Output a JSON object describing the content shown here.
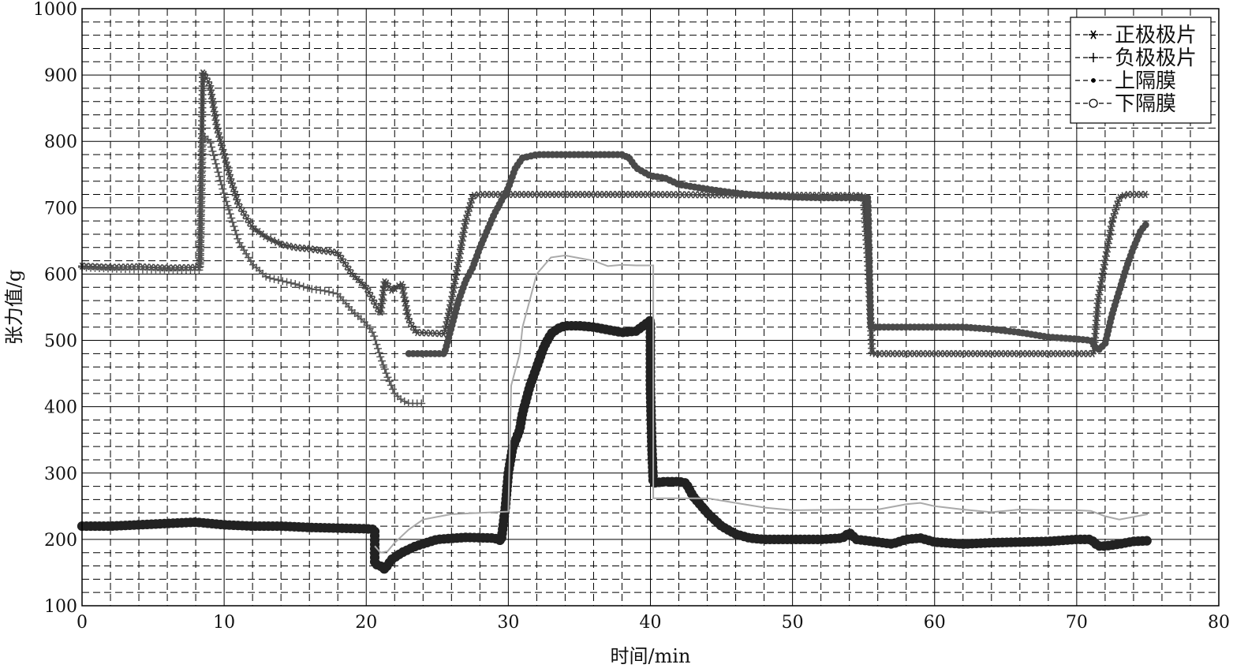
{
  "chart_data": {
    "type": "line",
    "xlabel": "时间/min",
    "ylabel": "张力值/g",
    "xlim": [
      0,
      80
    ],
    "ylim": [
      100,
      1000
    ],
    "x_ticks": [
      0,
      10,
      20,
      30,
      40,
      50,
      60,
      70,
      80
    ],
    "y_ticks": [
      100,
      200,
      300,
      400,
      500,
      600,
      700,
      800,
      900,
      1000
    ],
    "grid": true,
    "legend_position": "top-right",
    "series": [
      {
        "name": "正极极片",
        "marker": "star",
        "color": "#444444",
        "points": [
          [
            0,
            612
          ],
          [
            2,
            610
          ],
          [
            4,
            611
          ],
          [
            6,
            609
          ],
          [
            8,
            610
          ],
          [
            8.3,
            610
          ],
          [
            8.5,
            905
          ],
          [
            9,
            885
          ],
          [
            9.5,
            820
          ],
          [
            10,
            780
          ],
          [
            10.5,
            740
          ],
          [
            11,
            705
          ],
          [
            12,
            670
          ],
          [
            13,
            655
          ],
          [
            14,
            645
          ],
          [
            15,
            640
          ],
          [
            16,
            638
          ],
          [
            17,
            635
          ],
          [
            18,
            632
          ],
          [
            19,
            600
          ],
          [
            20,
            580
          ],
          [
            21,
            540
          ],
          [
            21.3,
            590
          ],
          [
            21.8,
            575
          ],
          [
            22.5,
            585
          ],
          [
            23,
            530
          ],
          [
            23.5,
            512
          ],
          [
            25.5,
            510
          ],
          [
            26,
            560
          ],
          [
            26.5,
            620
          ],
          [
            27,
            680
          ],
          [
            27.5,
            718
          ],
          [
            28,
            720
          ],
          [
            40,
            720
          ],
          [
            55,
            718
          ],
          [
            55.3,
            620
          ],
          [
            55.5,
            530
          ],
          [
            55.6,
            480
          ],
          [
            60,
            480
          ],
          [
            70,
            480
          ],
          [
            71.2,
            480
          ],
          [
            71.5,
            560
          ],
          [
            72,
            620
          ],
          [
            72.5,
            680
          ],
          [
            73,
            715
          ],
          [
            73.5,
            720
          ],
          [
            75,
            720
          ]
        ]
      },
      {
        "name": "负极极片",
        "marker": "plus",
        "color": "#555555",
        "points": [
          [
            0,
            610
          ],
          [
            2,
            608
          ],
          [
            4,
            607
          ],
          [
            6,
            607
          ],
          [
            8,
            606
          ],
          [
            8.3,
            606
          ],
          [
            8.5,
            810
          ],
          [
            9,
            800
          ],
          [
            9.5,
            760
          ],
          [
            10,
            720
          ],
          [
            11,
            650
          ],
          [
            12,
            615
          ],
          [
            13,
            595
          ],
          [
            14,
            590
          ],
          [
            15,
            585
          ],
          [
            16,
            578
          ],
          [
            17,
            575
          ],
          [
            18,
            570
          ],
          [
            19,
            545
          ],
          [
            20,
            525
          ],
          [
            20.5,
            510
          ],
          [
            21,
            475
          ],
          [
            21.5,
            445
          ],
          [
            22,
            420
          ],
          [
            22.5,
            410
          ],
          [
            23,
            405
          ],
          [
            24,
            405
          ]
        ]
      },
      {
        "name": "上隔膜",
        "marker": "dot",
        "color": "#4a4a4a",
        "points": [
          [
            23,
            480
          ],
          [
            25.5,
            480
          ],
          [
            26,
            520
          ],
          [
            26.5,
            560
          ],
          [
            27,
            590
          ],
          [
            27.5,
            610
          ],
          [
            28,
            640
          ],
          [
            28.5,
            665
          ],
          [
            29,
            690
          ],
          [
            29.5,
            710
          ],
          [
            30,
            730
          ],
          [
            30.5,
            760
          ],
          [
            31,
            775
          ],
          [
            32,
            780
          ],
          [
            34,
            780
          ],
          [
            36,
            780
          ],
          [
            38,
            780
          ],
          [
            38.5,
            775
          ],
          [
            39,
            760
          ],
          [
            40,
            748
          ],
          [
            41,
            745
          ],
          [
            42,
            735
          ],
          [
            44,
            728
          ],
          [
            46,
            722
          ],
          [
            48,
            718
          ],
          [
            50,
            716
          ],
          [
            52,
            715
          ],
          [
            55.3,
            715
          ],
          [
            55.5,
            520
          ],
          [
            60,
            520
          ],
          [
            62,
            520
          ],
          [
            64,
            517
          ],
          [
            66,
            512
          ],
          [
            68,
            505
          ],
          [
            70,
            502
          ],
          [
            71,
            500
          ],
          [
            71.5,
            485
          ],
          [
            72,
            495
          ],
          [
            72.5,
            540
          ],
          [
            73,
            575
          ],
          [
            73.5,
            610
          ],
          [
            74,
            640
          ],
          [
            74.5,
            665
          ],
          [
            75,
            678
          ]
        ]
      },
      {
        "name": "下隔膜",
        "marker": "circle",
        "color": "#222222",
        "points": [
          [
            0,
            220
          ],
          [
            2,
            220
          ],
          [
            4,
            222
          ],
          [
            6,
            224
          ],
          [
            8,
            226
          ],
          [
            10,
            222
          ],
          [
            12,
            220
          ],
          [
            14,
            220
          ],
          [
            16,
            218
          ],
          [
            18,
            217
          ],
          [
            20,
            216
          ],
          [
            20.6,
            215
          ],
          [
            20.6,
            163
          ],
          [
            21,
            160
          ],
          [
            21.3,
            155
          ],
          [
            21.8,
            170
          ],
          [
            22.5,
            180
          ],
          [
            23.5,
            190
          ],
          [
            25,
            200
          ],
          [
            27,
            203
          ],
          [
            29,
            202
          ],
          [
            29.5,
            198
          ],
          [
            29.8,
            250
          ],
          [
            30,
            300
          ],
          [
            30.3,
            338
          ],
          [
            30.8,
            365
          ],
          [
            31,
            390
          ],
          [
            31.5,
            430
          ],
          [
            32,
            460
          ],
          [
            32.5,
            490
          ],
          [
            33,
            510
          ],
          [
            33.5,
            518
          ],
          [
            34,
            522
          ],
          [
            35,
            522
          ],
          [
            36,
            520
          ],
          [
            37,
            516
          ],
          [
            38,
            512
          ],
          [
            39,
            514
          ],
          [
            40,
            530
          ],
          [
            40,
            430
          ],
          [
            40.1,
            340
          ],
          [
            40.2,
            285
          ],
          [
            41,
            287
          ],
          [
            42,
            287
          ],
          [
            42.5,
            285
          ],
          [
            43,
            265
          ],
          [
            44,
            240
          ],
          [
            45,
            220
          ],
          [
            46,
            208
          ],
          [
            47,
            202
          ],
          [
            48,
            200
          ],
          [
            50,
            200
          ],
          [
            52,
            200
          ],
          [
            53.5,
            202
          ],
          [
            54,
            210
          ],
          [
            54.5,
            200
          ],
          [
            56,
            196
          ],
          [
            57,
            193
          ],
          [
            58,
            200
          ],
          [
            59,
            202
          ],
          [
            60,
            196
          ],
          [
            62,
            193
          ],
          [
            64,
            195
          ],
          [
            66,
            196
          ],
          [
            68,
            197
          ],
          [
            70,
            200
          ],
          [
            71,
            200
          ],
          [
            71.5,
            190
          ],
          [
            72,
            190
          ],
          [
            73,
            193
          ],
          [
            74,
            197
          ],
          [
            75,
            198
          ]
        ]
      },
      {
        "marker": "none",
        "color": "#aaaaaa",
        "points": [
          [
            20.6,
            190
          ],
          [
            21,
            180
          ],
          [
            21.5,
            182
          ],
          [
            22,
            195
          ],
          [
            23,
            215
          ],
          [
            24,
            230
          ],
          [
            26,
            238
          ],
          [
            28,
            240
          ],
          [
            30,
            242
          ],
          [
            30.2,
            432
          ],
          [
            30.8,
            480
          ],
          [
            31,
            520
          ],
          [
            31.5,
            560
          ],
          [
            32,
            600
          ],
          [
            33,
            625
          ],
          [
            34,
            628
          ],
          [
            36,
            620
          ],
          [
            37,
            612
          ],
          [
            38,
            614
          ],
          [
            39,
            613
          ],
          [
            40,
            613
          ],
          [
            40.2,
            613
          ],
          [
            40.2,
            262
          ],
          [
            42,
            262
          ],
          [
            44,
            262
          ],
          [
            46,
            255
          ],
          [
            48,
            248
          ],
          [
            50,
            244
          ],
          [
            54,
            245
          ],
          [
            56,
            245
          ],
          [
            58,
            253
          ],
          [
            59,
            255
          ],
          [
            60,
            250
          ],
          [
            62,
            245
          ],
          [
            64,
            241
          ],
          [
            66,
            245
          ],
          [
            68,
            244
          ],
          [
            70,
            244
          ],
          [
            71,
            243
          ],
          [
            72,
            235
          ],
          [
            73,
            230
          ],
          [
            74,
            234
          ],
          [
            75,
            238
          ]
        ]
      }
    ]
  }
}
